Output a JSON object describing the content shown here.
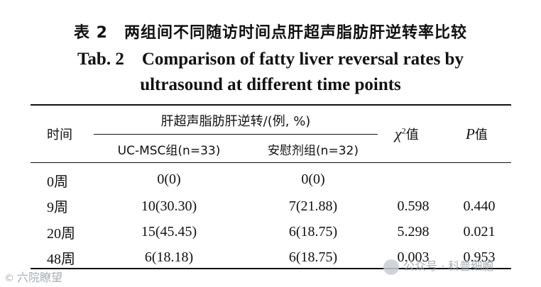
{
  "title_cn": "表 2　两组间不同随访时间点肝超声脂肪肝逆转率比较",
  "title_en_line1": "Tab. 2　Comparison of fatty liver reversal rates by",
  "title_en_line2": "ultrasound at different time points",
  "table": {
    "headers": {
      "time": "时间",
      "group_header": "肝超声脂肪肝逆转/(例, %)",
      "group1": "UC-MSC组(n=33)",
      "group2": "安慰剂组(n=32)",
      "chi_prefix": "χ",
      "chi_sup": "2",
      "chi_suffix": "值",
      "p_prefix": "P",
      "p_suffix": "值"
    },
    "rows": [
      {
        "time": "0周",
        "g1": "0(0)",
        "g2": "0(0)",
        "chi2": "",
        "p": ""
      },
      {
        "time": "9周",
        "g1": "10(30.30)",
        "g2": "7(21.88)",
        "chi2": "0.598",
        "p": "0.440"
      },
      {
        "time": "20周",
        "g1": "15(45.45)",
        "g2": "6(18.75)",
        "chi2": "5.298",
        "p": "0.021"
      },
      {
        "time": "48周",
        "g1": "6(18.18)",
        "g2": "6(18.75)",
        "chi2": "0.003",
        "p": "0.953"
      }
    ]
  },
  "watermarks": {
    "left": "六院瞭望",
    "right": "公众号 · 科普细胞"
  }
}
